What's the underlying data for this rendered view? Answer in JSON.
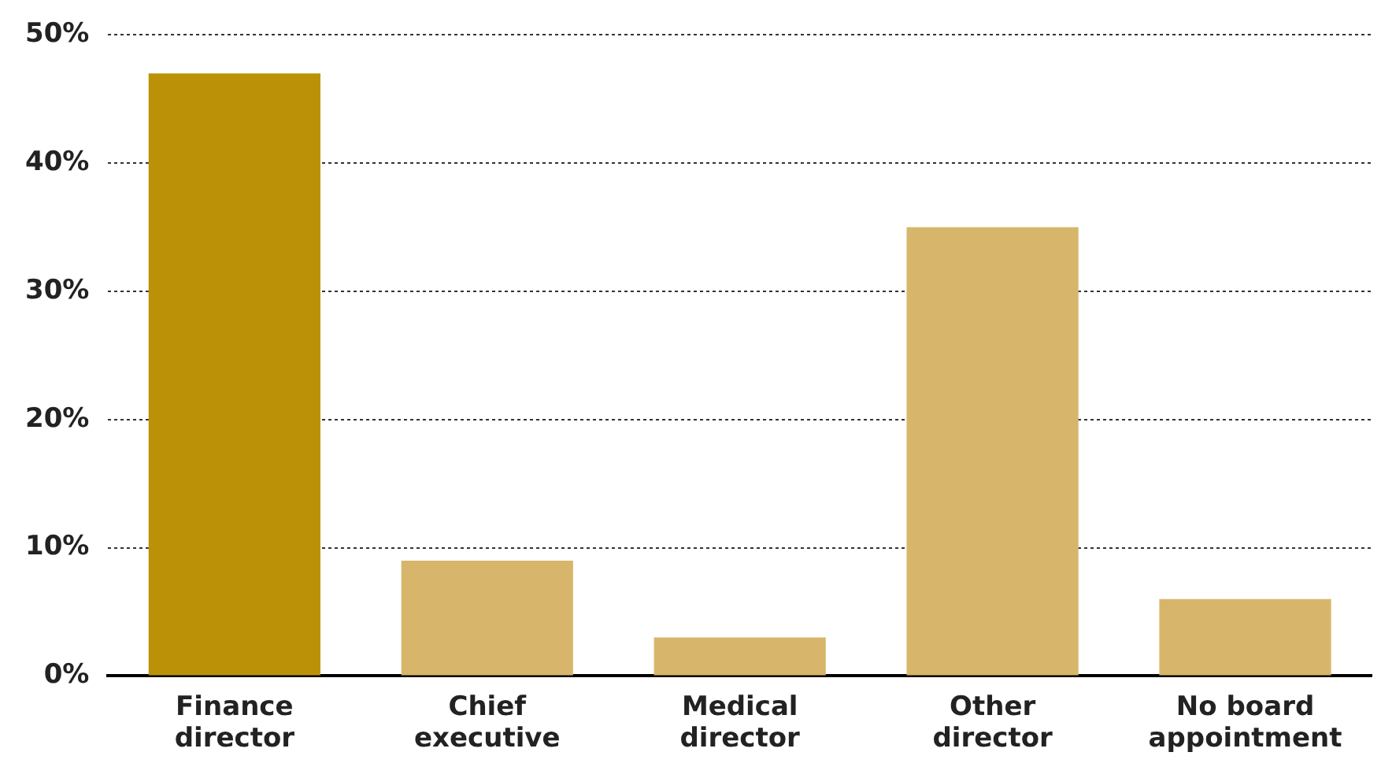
{
  "chart_data": {
    "type": "bar",
    "categories": [
      "Finance director",
      "Chief executive",
      "Medical director",
      "Other director",
      "No board appointment"
    ],
    "values": [
      47,
      9,
      3,
      35,
      6
    ],
    "colors": [
      "#bb9207",
      "#d7b66b",
      "#d7b66b",
      "#d7b66b",
      "#d7b66b"
    ],
    "ylim": [
      0,
      50
    ],
    "yticks": [
      {
        "value": 0,
        "label": "0%"
      },
      {
        "value": 10,
        "label": "10%"
      },
      {
        "value": 20,
        "label": "20%"
      },
      {
        "value": 30,
        "label": "30%"
      },
      {
        "value": 40,
        "label": "40%"
      },
      {
        "value": 50,
        "label": "50%"
      }
    ],
    "grid": "y",
    "legend": false
  }
}
